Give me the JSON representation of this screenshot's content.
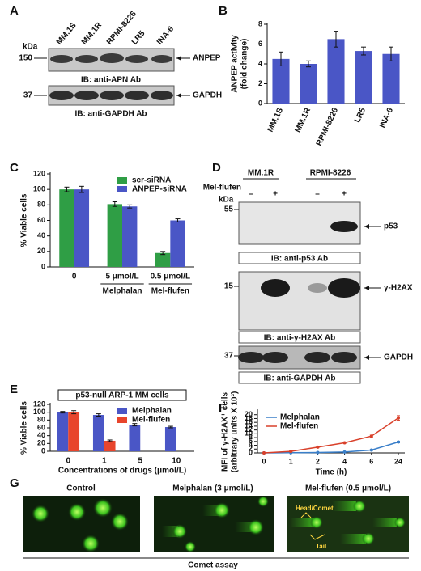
{
  "chart_data": [
    {
      "panel": "B",
      "type": "bar",
      "categories": [
        "MM.1S",
        "MM.1R",
        "RPMI-8226",
        "LR5",
        "INA-6"
      ],
      "values": [
        4.5,
        4.0,
        6.5,
        5.3,
        5.0
      ],
      "errors": [
        0.7,
        0.3,
        0.8,
        0.4,
        0.7
      ],
      "color": "#4a56c6",
      "ylabel": [
        "ANPEP activity",
        "(fold change)"
      ],
      "ylim": [
        0,
        8
      ],
      "yticks": [
        0,
        2,
        4,
        6,
        8
      ]
    },
    {
      "panel": "C",
      "type": "bar",
      "categories": [
        "0",
        "5 μmol/L",
        "0.5 μmol/L"
      ],
      "group_labels": [
        null,
        "Melphalan",
        "Mel-flufen"
      ],
      "series": [
        {
          "name": "scr-siRNA",
          "color": "#2f9e45",
          "values": [
            100,
            81,
            18
          ],
          "errors": [
            3,
            3,
            2
          ]
        },
        {
          "name": "ANPEP-siRNA",
          "color": "#4a56c6",
          "values": [
            100,
            78,
            60
          ],
          "errors": [
            4,
            2,
            2
          ]
        }
      ],
      "ylabel": "% Viable cells",
      "ylim": [
        0,
        120
      ],
      "yticks": [
        0,
        20,
        40,
        60,
        80,
        100,
        120
      ],
      "legend": "upper right"
    },
    {
      "panel": "E",
      "type": "bar",
      "title": "p53-null ARP-1 MM cells",
      "categories": [
        "0",
        "1",
        "5",
        "10"
      ],
      "series": [
        {
          "name": "Melphalan",
          "color": "#4a56c6",
          "values": [
            100,
            93,
            68,
            62
          ],
          "errors": [
            2,
            3,
            3,
            2
          ]
        },
        {
          "name": "Mel-flufen",
          "color": "#e8452c",
          "values": [
            100,
            27,
            null,
            null
          ],
          "errors": [
            4,
            2,
            null,
            null
          ]
        }
      ],
      "xlabel": "Concentrations of drugs (μmol/L)",
      "ylabel": "% Viable cells",
      "ylim": [
        0,
        120
      ],
      "yticks": [
        0,
        20,
        40,
        60,
        80,
        100,
        120
      ],
      "legend": "upper right"
    },
    {
      "panel": "F",
      "type": "line",
      "categories": [
        "0",
        "1",
        "2",
        "4",
        "6",
        "24"
      ],
      "series": [
        {
          "name": "Melphalan",
          "color": "#3a7fc9",
          "values": [
            0,
            0.1,
            0.2,
            0.5,
            1.5,
            5.7
          ],
          "errors": [
            0.1,
            0.1,
            0.1,
            0.1,
            0.2,
            0.4
          ]
        },
        {
          "name": "Mel-flufen",
          "color": "#d9402a",
          "values": [
            0,
            0.8,
            3.0,
            5.3,
            8.8,
            18.3
          ],
          "errors": [
            0.1,
            0.2,
            0.3,
            0.3,
            0.5,
            1.2
          ]
        }
      ],
      "xlabel": "Time (h)",
      "ylabel": [
        "MFI of γ-H2AX⁺ cells",
        "(arbitrary units X 10³)"
      ],
      "ylim": [
        0,
        22
      ],
      "yticks": [
        0,
        2,
        4,
        6,
        8,
        10,
        12,
        14,
        16,
        18,
        20
      ],
      "legend": "upper left"
    }
  ],
  "blot_a": {
    "panel": "A",
    "kda": "kDa",
    "lanes": [
      "MM.1S",
      "MM.1R",
      "RPMI-8226",
      "LR5",
      "INA-6"
    ],
    "markers": [
      "150",
      "37"
    ],
    "targets": [
      "ANPEP",
      "GAPDH"
    ],
    "antibodies": [
      "IB: anti-APN Ab",
      "IB: anti-GAPDH Ab"
    ]
  },
  "blot_d": {
    "panel": "D",
    "cell_lines": [
      "MM.1R",
      "RPMI-8226"
    ],
    "treatment": "Mel-flufen",
    "signs": [
      "–",
      "+",
      "–",
      "+"
    ],
    "kda": "kDa",
    "markers": [
      "55",
      "15",
      "37"
    ],
    "targets": [
      "p53",
      "γ-H2AX",
      "GAPDH"
    ],
    "antibodies": [
      "IB: anti-p53 Ab",
      "IB: anti-γ-H2AX Ab",
      "IB: anti-GAPDH Ab"
    ]
  },
  "comet": {
    "panel": "G",
    "conditions": [
      "Control",
      "Melphalan (3 μmol/L)",
      "Mel-flufen (0.5 μmol/L)"
    ],
    "annotations": [
      "Head/Comet",
      "Tail"
    ],
    "caption": "Comet assay"
  }
}
